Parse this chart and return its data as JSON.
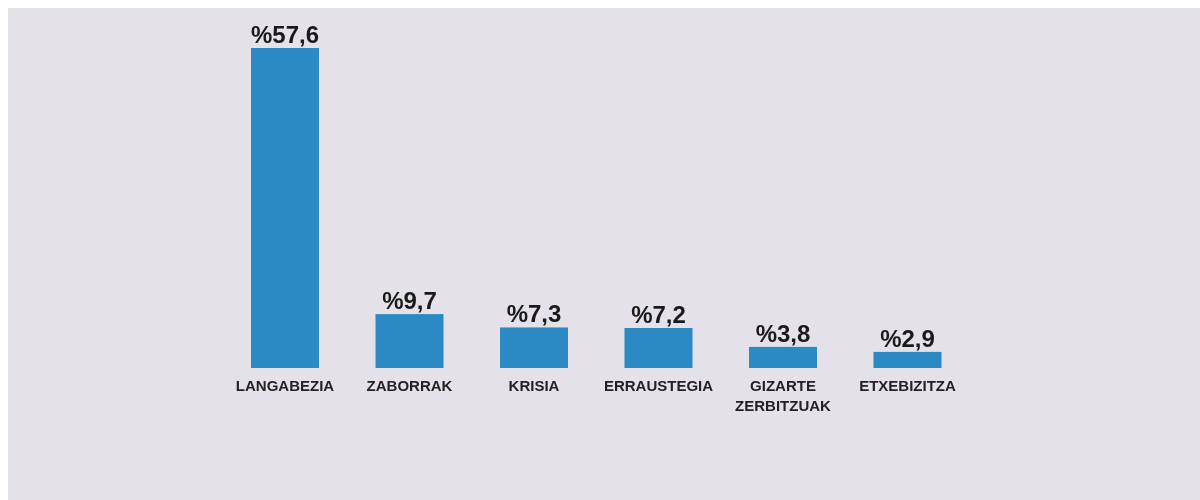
{
  "chart_data": {
    "type": "bar",
    "categories": [
      "LANGABEZIA",
      "ZABORRAK",
      "KRISIA",
      "ERRAUSTEGIA",
      "GIZARTE ZERBITZUAK",
      "ETXEBIZITZA"
    ],
    "values": [
      57.6,
      9.7,
      7.3,
      7.2,
      3.8,
      2.9
    ],
    "value_labels": [
      "%57,6",
      "%9,7",
      "%7,3",
      "%7,2",
      "%3,8",
      "%2,9"
    ],
    "color": "#2b8ac4"
  }
}
